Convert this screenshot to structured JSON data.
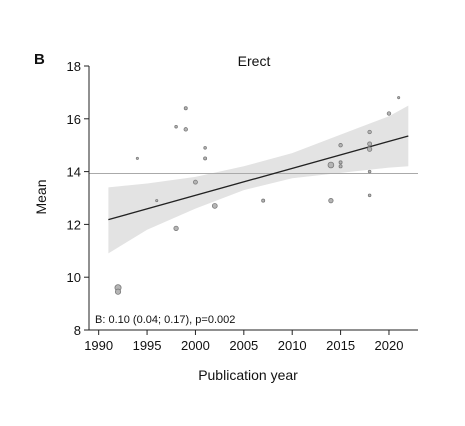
{
  "chart_data": {
    "type": "scatter",
    "panel_label": "B",
    "title": "Erect",
    "xlabel": "Publication year",
    "ylabel": "Mean",
    "xlim": [
      1989,
      2023
    ],
    "ylim": [
      8,
      18
    ],
    "xticks": [
      1990,
      1995,
      2000,
      2005,
      2010,
      2015,
      2020
    ],
    "yticks": [
      8,
      10,
      12,
      14,
      16,
      18
    ],
    "grid": false,
    "legend": "none",
    "colors": {
      "points_fill": "#b5b5b5",
      "points_stroke": "#7a7a7a",
      "ci_band": "#e3e3e3",
      "regression_line": "#222222",
      "reference_line": "#aaaaaa"
    },
    "points": [
      {
        "x": 1992,
        "y": 9.6,
        "w": 1.0
      },
      {
        "x": 1992,
        "y": 9.45,
        "w": 0.8
      },
      {
        "x": 1994,
        "y": 14.5,
        "w": 0.1
      },
      {
        "x": 1996,
        "y": 12.9,
        "w": 0.1
      },
      {
        "x": 1998,
        "y": 15.7,
        "w": 0.2
      },
      {
        "x": 1998,
        "y": 11.85,
        "w": 0.6
      },
      {
        "x": 1999,
        "y": 16.4,
        "w": 0.3
      },
      {
        "x": 1999,
        "y": 15.6,
        "w": 0.4
      },
      {
        "x": 2000,
        "y": 13.6,
        "w": 0.5
      },
      {
        "x": 2001,
        "y": 14.9,
        "w": 0.2
      },
      {
        "x": 2001,
        "y": 14.5,
        "w": 0.3
      },
      {
        "x": 2002,
        "y": 12.7,
        "w": 0.7
      },
      {
        "x": 2007,
        "y": 12.9,
        "w": 0.3
      },
      {
        "x": 2014,
        "y": 14.25,
        "w": 0.9
      },
      {
        "x": 2014,
        "y": 12.9,
        "w": 0.6
      },
      {
        "x": 2015,
        "y": 15.0,
        "w": 0.4
      },
      {
        "x": 2015,
        "y": 14.35,
        "w": 0.3
      },
      {
        "x": 2015,
        "y": 14.2,
        "w": 0.3
      },
      {
        "x": 2018,
        "y": 15.5,
        "w": 0.4
      },
      {
        "x": 2018,
        "y": 15.05,
        "w": 0.5
      },
      {
        "x": 2018,
        "y": 14.85,
        "w": 0.6
      },
      {
        "x": 2018,
        "y": 14.0,
        "w": 0.2
      },
      {
        "x": 2018,
        "y": 13.1,
        "w": 0.2
      },
      {
        "x": 2020,
        "y": 16.2,
        "w": 0.4
      },
      {
        "x": 2021,
        "y": 16.8,
        "w": 0.1
      }
    ],
    "regression": {
      "x": [
        1991,
        2022
      ],
      "y": [
        12.18,
        15.35
      ]
    },
    "ci_band": {
      "x": [
        1991,
        1995,
        2000,
        2005,
        2010,
        2015,
        2020,
        2022
      ],
      "lower": [
        10.9,
        11.8,
        12.6,
        13.3,
        13.75,
        13.95,
        14.15,
        14.2
      ],
      "upper": [
        13.4,
        13.55,
        13.8,
        14.2,
        14.7,
        15.4,
        16.1,
        16.5
      ]
    },
    "reference_line": {
      "y": 13.93
    },
    "annotation": "B: 0.10 (0.04; 0.17), p=0.002"
  }
}
